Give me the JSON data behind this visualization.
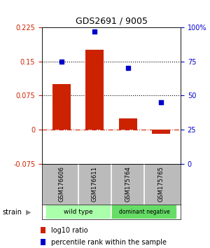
{
  "title": "GDS2691 / 9005",
  "samples": [
    "GSM176606",
    "GSM176611",
    "GSM175764",
    "GSM175765"
  ],
  "log10_ratio": [
    0.1,
    0.175,
    0.025,
    -0.01
  ],
  "percentile_rank": [
    75,
    97,
    70,
    45
  ],
  "bar_color": "#cc2200",
  "dot_color": "#0000cc",
  "ylim_left": [
    -0.075,
    0.225
  ],
  "ylim_right": [
    0,
    100
  ],
  "yticks_left": [
    -0.075,
    0,
    0.075,
    0.15,
    0.225
  ],
  "ytick_labels_left": [
    "-0.075",
    "0",
    "0.075",
    "0.15",
    "0.225"
  ],
  "yticks_right": [
    0,
    25,
    50,
    75,
    100
  ],
  "ytick_labels_right": [
    "0",
    "25",
    "50",
    "75",
    "100%"
  ],
  "hlines": [
    0.075,
    0.15
  ],
  "hline_zero_color": "#cc2200",
  "strain_groups": [
    {
      "label": "wild type",
      "indices": [
        0,
        1
      ],
      "color": "#aaffaa"
    },
    {
      "label": "dominant negative",
      "indices": [
        2,
        3
      ],
      "color": "#66dd66"
    }
  ],
  "strain_label": "strain",
  "legend_bar_label": "log10 ratio",
  "legend_dot_label": "percentile rank within the sample",
  "sample_bg_color": "#bbbbbb",
  "bar_width": 0.55
}
